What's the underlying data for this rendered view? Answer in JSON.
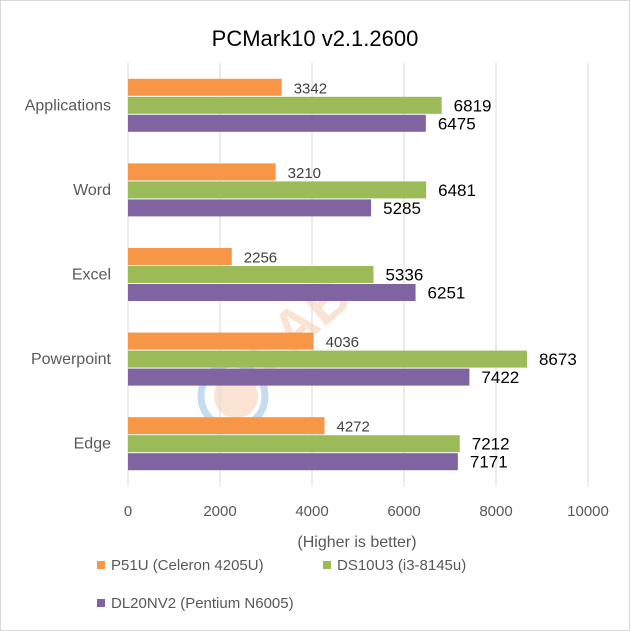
{
  "chart_data": {
    "type": "bar",
    "orientation": "horizontal",
    "title": "PCMark10 v2.1.2600",
    "xlabel": "(Higher is better)",
    "ylabel": "",
    "categories": [
      "Applications",
      "Word",
      "Excel",
      "Powerpoint",
      "Edge"
    ],
    "series": [
      {
        "name": "P51U (Celeron 4205U)",
        "color": "#F79646",
        "values": [
          3342,
          3210,
          2256,
          4036,
          4272
        ]
      },
      {
        "name": "DS10U3 (i3-8145u)",
        "color": "#9BBB59",
        "values": [
          6819,
          6481,
          5336,
          8673,
          7212
        ]
      },
      {
        "name": "DL20NV2 (Pentium N6005)",
        "color": "#8064A2",
        "values": [
          6475,
          5285,
          6251,
          7422,
          7171
        ]
      }
    ],
    "xlim": [
      0,
      10000
    ],
    "xticks": [
      0,
      2000,
      4000,
      6000,
      8000,
      10000
    ],
    "grid": true,
    "legend_position": "bottom"
  }
}
